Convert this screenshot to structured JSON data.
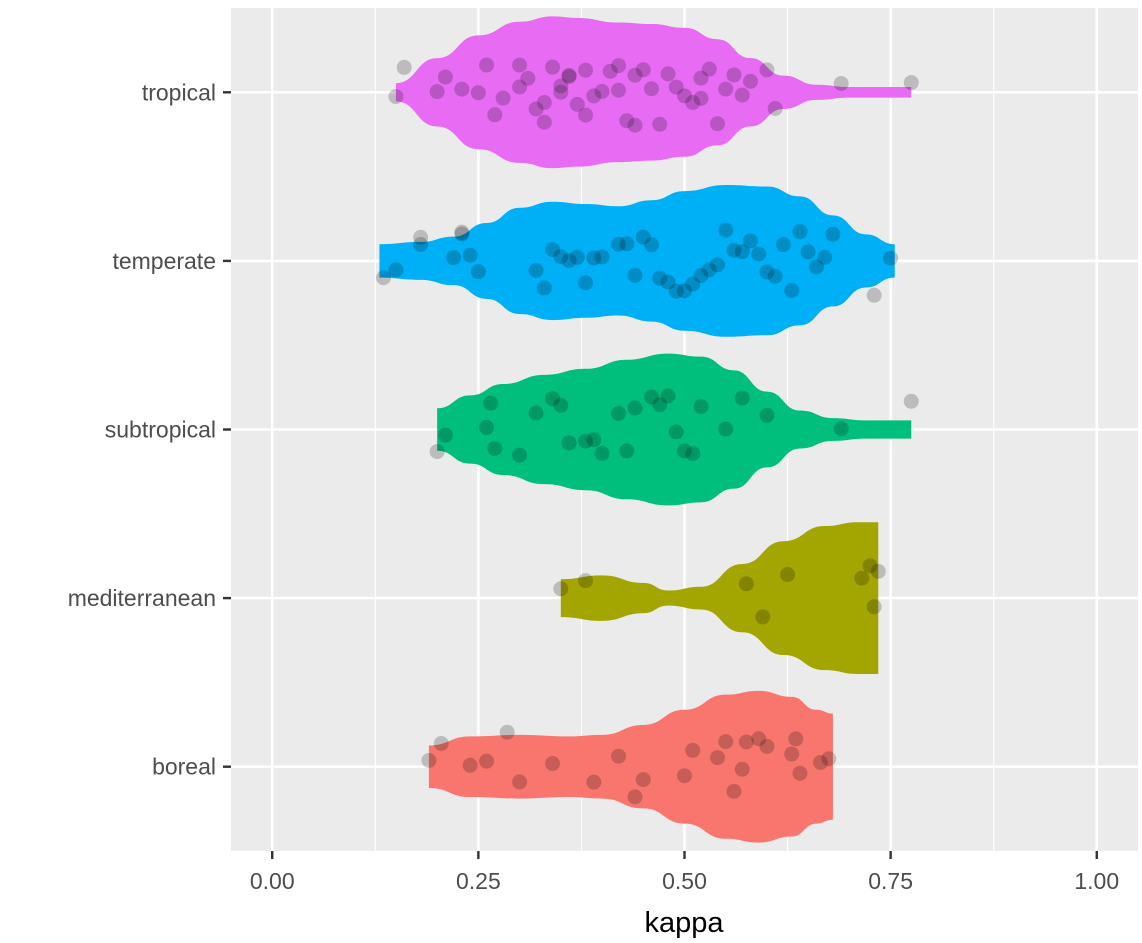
{
  "chart_data": {
    "type": "violin",
    "title": "",
    "xlabel": "kappa",
    "ylabel": "",
    "xlim": [
      -0.05,
      1.05
    ],
    "x_ticks": [
      0.0,
      0.25,
      0.5,
      0.75,
      1.0
    ],
    "x_tick_labels": [
      "0.00",
      "0.25",
      "0.50",
      "0.75",
      "1.00"
    ],
    "categories": [
      "tropical",
      "temperate",
      "subtropical",
      "mediterranean",
      "boreal"
    ],
    "grid": true,
    "legend": "none",
    "colors": {
      "tropical": "#E76BF3",
      "temperate": "#00B0F6",
      "subtropical": "#00BF7D",
      "mediterranean": "#A3A500",
      "boreal": "#F8766D",
      "panel_background": "#EBEBEB",
      "grid": "#FFFFFF",
      "point": "#000000"
    },
    "series": [
      {
        "name": "tropical",
        "range": [
          0.15,
          0.775
        ],
        "density": [
          [
            0.15,
            0.12
          ],
          [
            0.2,
            0.45
          ],
          [
            0.25,
            0.75
          ],
          [
            0.3,
            0.93
          ],
          [
            0.34,
            1.0
          ],
          [
            0.37,
            0.98
          ],
          [
            0.42,
            0.92
          ],
          [
            0.46,
            0.9
          ],
          [
            0.5,
            0.85
          ],
          [
            0.54,
            0.7
          ],
          [
            0.58,
            0.45
          ],
          [
            0.62,
            0.22
          ],
          [
            0.66,
            0.1
          ],
          [
            0.7,
            0.07
          ],
          [
            0.775,
            0.07
          ]
        ],
        "points": [
          [
            0.2,
            0.14
          ],
          [
            0.15,
            0.13
          ],
          [
            0.16,
            0.12
          ],
          [
            0.21,
            0.11
          ],
          [
            0.23,
            0.1
          ],
          [
            0.25,
            0.13
          ],
          [
            0.26,
            0.12
          ],
          [
            0.27,
            0.11
          ],
          [
            0.28,
            0.12
          ],
          [
            0.3,
            0.11
          ],
          [
            0.31,
            0.12
          ],
          [
            0.32,
            0.11
          ],
          [
            0.33,
            0.12
          ],
          [
            0.34,
            0.11
          ],
          [
            0.35,
            0.12
          ],
          [
            0.36,
            0.11
          ],
          [
            0.37,
            0.13
          ],
          [
            0.38,
            0.12
          ],
          [
            0.39,
            0.11
          ],
          [
            0.4,
            0.13
          ],
          [
            0.41,
            0.12
          ],
          [
            0.42,
            0.11
          ],
          [
            0.43,
            0.12
          ],
          [
            0.44,
            0.13
          ],
          [
            0.45,
            0.11
          ],
          [
            0.46,
            0.12
          ],
          [
            0.47,
            0.13
          ],
          [
            0.48,
            0.11
          ],
          [
            0.49,
            0.12
          ],
          [
            0.5,
            0.13
          ],
          [
            0.51,
            0.11
          ],
          [
            0.52,
            0.12
          ],
          [
            0.53,
            0.13
          ],
          [
            0.54,
            0.12
          ],
          [
            0.55,
            0.11
          ],
          [
            0.56,
            0.12
          ],
          [
            0.57,
            0.11
          ],
          [
            0.58,
            0.12
          ],
          [
            0.6,
            0.12
          ],
          [
            0.61,
            0.11
          ],
          [
            0.69,
            0.11
          ],
          [
            0.775,
            0.12
          ],
          [
            0.3,
            0.12
          ],
          [
            0.33,
            0.13
          ],
          [
            0.36,
            0.12
          ],
          [
            0.38,
            0.11
          ],
          [
            0.42,
            0.13
          ],
          [
            0.44,
            0.12
          ],
          [
            0.52,
            0.11
          ],
          [
            0.35,
            0.12
          ]
        ]
      },
      {
        "name": "temperate",
        "range": [
          0.13,
          0.755
        ],
        "density": [
          [
            0.13,
            0.22
          ],
          [
            0.18,
            0.25
          ],
          [
            0.22,
            0.32
          ],
          [
            0.26,
            0.5
          ],
          [
            0.3,
            0.7
          ],
          [
            0.34,
            0.78
          ],
          [
            0.38,
            0.75
          ],
          [
            0.42,
            0.72
          ],
          [
            0.46,
            0.8
          ],
          [
            0.5,
            0.92
          ],
          [
            0.55,
            1.0
          ],
          [
            0.6,
            0.98
          ],
          [
            0.64,
            0.85
          ],
          [
            0.68,
            0.6
          ],
          [
            0.72,
            0.35
          ],
          [
            0.755,
            0.22
          ]
        ],
        "points": [
          [
            0.135,
            0.12
          ],
          [
            0.15,
            0.11
          ],
          [
            0.18,
            0.12
          ],
          [
            0.18,
            0.11
          ],
          [
            0.22,
            0.12
          ],
          [
            0.23,
            0.13
          ],
          [
            0.23,
            0.11
          ],
          [
            0.24,
            0.12
          ],
          [
            0.25,
            0.11
          ],
          [
            0.32,
            0.12
          ],
          [
            0.33,
            0.11
          ],
          [
            0.34,
            0.12
          ],
          [
            0.35,
            0.13
          ],
          [
            0.36,
            0.12
          ],
          [
            0.37,
            0.11
          ],
          [
            0.38,
            0.12
          ],
          [
            0.39,
            0.11
          ],
          [
            0.4,
            0.12
          ],
          [
            0.42,
            0.13
          ],
          [
            0.43,
            0.12
          ],
          [
            0.44,
            0.11
          ],
          [
            0.45,
            0.12
          ],
          [
            0.46,
            0.13
          ],
          [
            0.47,
            0.12
          ],
          [
            0.48,
            0.11
          ],
          [
            0.49,
            0.12
          ],
          [
            0.5,
            0.13
          ],
          [
            0.51,
            0.12
          ],
          [
            0.52,
            0.11
          ],
          [
            0.53,
            0.12
          ],
          [
            0.54,
            0.13
          ],
          [
            0.55,
            0.12
          ],
          [
            0.56,
            0.11
          ],
          [
            0.57,
            0.12
          ],
          [
            0.58,
            0.13
          ],
          [
            0.59,
            0.12
          ],
          [
            0.6,
            0.11
          ],
          [
            0.61,
            0.12
          ],
          [
            0.62,
            0.13
          ],
          [
            0.63,
            0.12
          ],
          [
            0.64,
            0.11
          ],
          [
            0.65,
            0.12
          ],
          [
            0.66,
            0.13
          ],
          [
            0.67,
            0.11
          ],
          [
            0.68,
            0.12
          ],
          [
            0.73,
            0.13
          ],
          [
            0.75,
            0.12
          ]
        ]
      },
      {
        "name": "subtropical",
        "range": [
          0.2,
          0.775
        ],
        "density": [
          [
            0.2,
            0.28
          ],
          [
            0.24,
            0.45
          ],
          [
            0.28,
            0.6
          ],
          [
            0.33,
            0.72
          ],
          [
            0.38,
            0.8
          ],
          [
            0.43,
            0.92
          ],
          [
            0.48,
            1.0
          ],
          [
            0.52,
            0.96
          ],
          [
            0.56,
            0.78
          ],
          [
            0.6,
            0.5
          ],
          [
            0.64,
            0.25
          ],
          [
            0.68,
            0.15
          ],
          [
            0.72,
            0.12
          ],
          [
            0.775,
            0.12
          ]
        ],
        "points": [
          [
            0.2,
            0.11
          ],
          [
            0.21,
            0.12
          ],
          [
            0.26,
            0.12
          ],
          [
            0.265,
            0.13
          ],
          [
            0.27,
            0.12
          ],
          [
            0.3,
            0.12
          ],
          [
            0.32,
            0.13
          ],
          [
            0.34,
            0.12
          ],
          [
            0.35,
            0.13
          ],
          [
            0.36,
            0.12
          ],
          [
            0.38,
            0.11
          ],
          [
            0.39,
            0.12
          ],
          [
            0.4,
            0.12
          ],
          [
            0.42,
            0.11
          ],
          [
            0.43,
            0.12
          ],
          [
            0.44,
            0.12
          ],
          [
            0.46,
            0.13
          ],
          [
            0.47,
            0.11
          ],
          [
            0.48,
            0.13
          ],
          [
            0.49,
            0.12
          ],
          [
            0.5,
            0.12
          ],
          [
            0.51,
            0.13
          ],
          [
            0.52,
            0.12
          ],
          [
            0.55,
            0.12
          ],
          [
            0.57,
            0.13
          ],
          [
            0.6,
            0.12
          ],
          [
            0.69,
            0.12
          ],
          [
            0.775,
            0.12
          ]
        ]
      },
      {
        "name": "mediterranean",
        "range": [
          0.35,
          0.735
        ],
        "density": [
          [
            0.35,
            0.25
          ],
          [
            0.4,
            0.3
          ],
          [
            0.45,
            0.2
          ],
          [
            0.48,
            0.1
          ],
          [
            0.52,
            0.15
          ],
          [
            0.57,
            0.45
          ],
          [
            0.62,
            0.75
          ],
          [
            0.67,
            0.95
          ],
          [
            0.71,
            1.0
          ],
          [
            0.735,
            1.0
          ]
        ],
        "points": [
          [
            0.35,
            0.12
          ],
          [
            0.38,
            0.12
          ],
          [
            0.575,
            0.13
          ],
          [
            0.595,
            0.12
          ],
          [
            0.625,
            0.12
          ],
          [
            0.715,
            0.11
          ],
          [
            0.725,
            0.12
          ],
          [
            0.73,
            0.13
          ],
          [
            0.735,
            0.12
          ]
        ]
      },
      {
        "name": "boreal",
        "range": [
          0.19,
          0.68
        ],
        "density": [
          [
            0.19,
            0.28
          ],
          [
            0.24,
            0.4
          ],
          [
            0.3,
            0.42
          ],
          [
            0.36,
            0.4
          ],
          [
            0.4,
            0.42
          ],
          [
            0.45,
            0.55
          ],
          [
            0.5,
            0.75
          ],
          [
            0.55,
            0.95
          ],
          [
            0.59,
            1.0
          ],
          [
            0.63,
            0.92
          ],
          [
            0.66,
            0.75
          ],
          [
            0.68,
            0.7
          ]
        ],
        "points": [
          [
            0.19,
            0.12
          ],
          [
            0.205,
            0.11
          ],
          [
            0.24,
            0.12
          ],
          [
            0.26,
            0.12
          ],
          [
            0.285,
            0.13
          ],
          [
            0.3,
            0.11
          ],
          [
            0.34,
            0.12
          ],
          [
            0.39,
            0.12
          ],
          [
            0.42,
            0.12
          ],
          [
            0.44,
            0.13
          ],
          [
            0.45,
            0.11
          ],
          [
            0.5,
            0.12
          ],
          [
            0.51,
            0.13
          ],
          [
            0.54,
            0.12
          ],
          [
            0.55,
            0.11
          ],
          [
            0.56,
            0.12
          ],
          [
            0.575,
            0.11
          ],
          [
            0.59,
            0.12
          ],
          [
            0.6,
            0.12
          ],
          [
            0.63,
            0.12
          ],
          [
            0.635,
            0.11
          ],
          [
            0.64,
            0.12
          ],
          [
            0.665,
            0.13
          ],
          [
            0.675,
            0.12
          ],
          [
            0.57,
            0.12
          ]
        ]
      }
    ]
  }
}
